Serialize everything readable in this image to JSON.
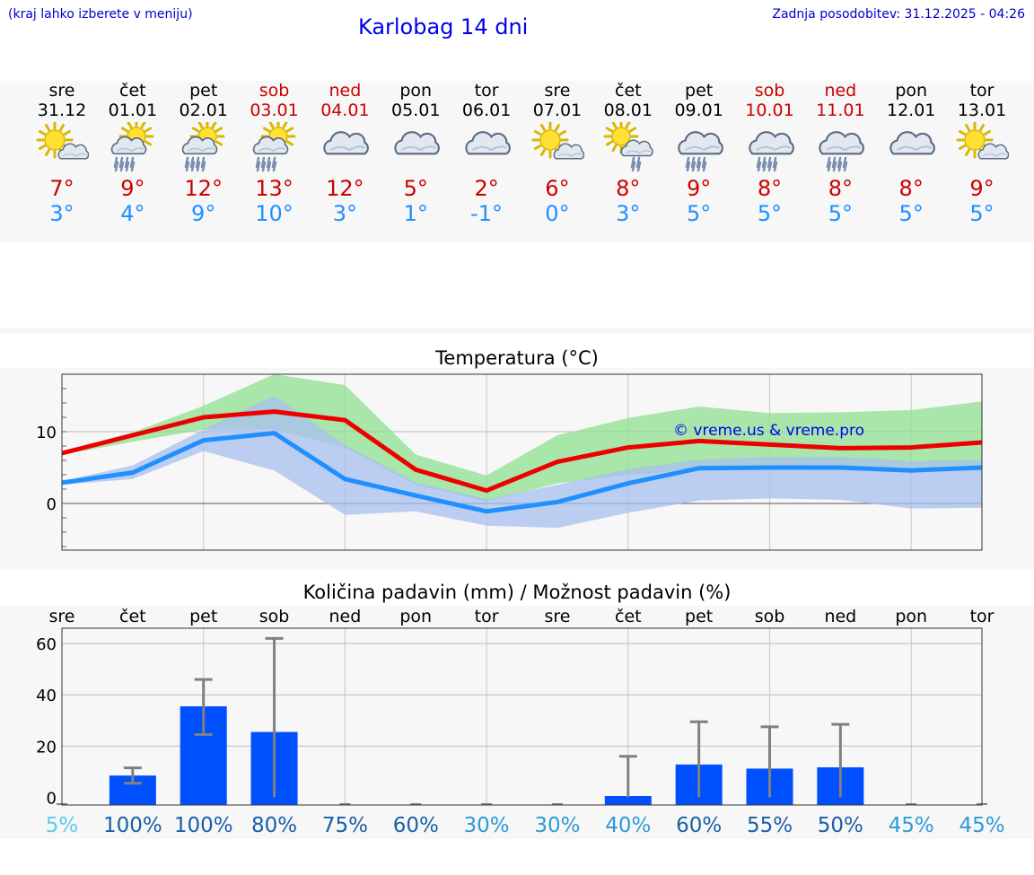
{
  "header": {
    "hint": "(kraj lahko izberete v meniju)",
    "title": "Karlobag 14 dni",
    "updated": "Zadnja posodobitev: 31.12.2025 - 04:26"
  },
  "colors": {
    "max": "#cc0000",
    "min": "#1e90ff",
    "weekend": "#cc0000",
    "bar": "#0050ff"
  },
  "days": [
    {
      "name": "sre",
      "date": "31.12",
      "weekend": false,
      "icon": "sun-cloud-icon",
      "max": "7°",
      "min": "3°"
    },
    {
      "name": "čet",
      "date": "01.01",
      "weekend": false,
      "icon": "sun-cloud-rain-icon",
      "max": "9°",
      "min": "4°"
    },
    {
      "name": "pet",
      "date": "02.01",
      "weekend": false,
      "icon": "sun-cloud-rain-icon",
      "max": "12°",
      "min": "9°"
    },
    {
      "name": "sob",
      "date": "03.01",
      "weekend": true,
      "icon": "sun-cloud-rain-icon",
      "max": "13°",
      "min": "10°"
    },
    {
      "name": "ned",
      "date": "04.01",
      "weekend": true,
      "icon": "cloud-icon",
      "max": "12°",
      "min": "3°"
    },
    {
      "name": "pon",
      "date": "05.01",
      "weekend": false,
      "icon": "cloud-icon",
      "max": "5°",
      "min": "1°"
    },
    {
      "name": "tor",
      "date": "06.01",
      "weekend": false,
      "icon": "cloud-icon",
      "max": "2°",
      "min": "-1°"
    },
    {
      "name": "sre",
      "date": "07.01",
      "weekend": false,
      "icon": "sun-cloud-icon",
      "max": "6°",
      "min": "0°"
    },
    {
      "name": "čet",
      "date": "08.01",
      "weekend": false,
      "icon": "sun-cloud-drizzle-icon",
      "max": "8°",
      "min": "3°"
    },
    {
      "name": "pet",
      "date": "09.01",
      "weekend": false,
      "icon": "cloud-rain-icon",
      "max": "9°",
      "min": "5°"
    },
    {
      "name": "sob",
      "date": "10.01",
      "weekend": true,
      "icon": "cloud-rain-icon",
      "max": "8°",
      "min": "5°"
    },
    {
      "name": "ned",
      "date": "11.01",
      "weekend": true,
      "icon": "cloud-rain-icon",
      "max": "8°",
      "min": "5°"
    },
    {
      "name": "pon",
      "date": "12.01",
      "weekend": false,
      "icon": "cloud-icon",
      "max": "8°",
      "min": "5°"
    },
    {
      "name": "tor",
      "date": "13.01",
      "weekend": false,
      "icon": "sun-cloud-icon",
      "max": "9°",
      "min": "5°"
    }
  ],
  "chart_data": [
    {
      "type": "line",
      "title": "Temperatura (°C)",
      "watermark": "© vreme.us & vreme.pro",
      "ylim": [
        -6.5,
        18
      ],
      "yticks": [
        0,
        10
      ],
      "x": [
        0,
        1,
        2,
        3,
        4,
        5,
        6,
        7,
        8,
        9,
        10,
        11,
        12,
        13
      ],
      "series": [
        {
          "name": "max",
          "color": "#ee0000",
          "values": [
            7,
            9.5,
            12,
            12.8,
            11.6,
            4.7,
            1.8,
            5.8,
            7.8,
            8.7,
            8.2,
            7.7,
            7.8,
            8.5
          ]
        },
        {
          "name": "min",
          "color": "#2090ff",
          "values": [
            2.9,
            4.3,
            8.8,
            9.8,
            3.4,
            1.1,
            -1.1,
            0.2,
            2.8,
            4.9,
            5,
            5,
            4.6,
            5
          ]
        }
      ],
      "bands": [
        {
          "name": "max-range",
          "color": "#8fe08f",
          "low": [
            6.8,
            8.6,
            10.3,
            10.3,
            7.8,
            2.6,
            0.3,
            2.8,
            4,
            4.6,
            4.8,
            4.6,
            4.6,
            4.6
          ],
          "high": [
            7.2,
            9.9,
            13.6,
            18,
            16.5,
            6.8,
            3.9,
            9.5,
            11.9,
            13.5,
            12.6,
            12.7,
            13,
            14.2
          ]
        },
        {
          "name": "min-range",
          "color": "#a8bff0",
          "low": [
            2.6,
            3.4,
            7.3,
            4.6,
            -1.6,
            -1.1,
            -3.1,
            -3.4,
            -1.3,
            0.4,
            0.7,
            0.5,
            -0.7,
            -0.6
          ],
          "high": [
            3.1,
            5.3,
            10.3,
            15,
            8.2,
            2.9,
            0.6,
            2.6,
            4.8,
            6.1,
            6.5,
            6.5,
            5.9,
            6.1
          ]
        }
      ]
    },
    {
      "type": "bar",
      "title": "Količina padavin (mm) / Možnost padavin (%)",
      "categories": [
        "sre",
        "čet",
        "pet",
        "sob",
        "ned",
        "pon",
        "tor",
        "sre",
        "čet",
        "pet",
        "sob",
        "ned",
        "pon",
        "tor"
      ],
      "ylim": [
        -3,
        66
      ],
      "yticks": [
        0,
        20,
        40,
        60
      ],
      "values": [
        0,
        8.5,
        35.5,
        25.5,
        0,
        0,
        0,
        0,
        0.5,
        12.8,
        11.2,
        11.7,
        0,
        0
      ],
      "error_low": [
        0,
        5.5,
        24.5,
        0,
        0,
        0,
        0,
        0,
        0,
        0,
        0,
        0,
        0,
        0
      ],
      "error_high": [
        0,
        11.5,
        46,
        62,
        0,
        0,
        0,
        0,
        16,
        29.5,
        27.5,
        28.5,
        0,
        0
      ],
      "probability": [
        "5%",
        "100%",
        "100%",
        "80%",
        "75%",
        "60%",
        "30%",
        "30%",
        "40%",
        "60%",
        "55%",
        "50%",
        "45%",
        "45%"
      ],
      "probability_colors": [
        "#55ccee",
        "#1a5fa8",
        "#1a5fa8",
        "#1a5fa8",
        "#1a5fa8",
        "#1a5fa8",
        "#2e9ad6",
        "#2e9ad6",
        "#2e9ad6",
        "#1a5fa8",
        "#1a5fa8",
        "#1a5fa8",
        "#2e9ad6",
        "#2e9ad6"
      ]
    }
  ]
}
